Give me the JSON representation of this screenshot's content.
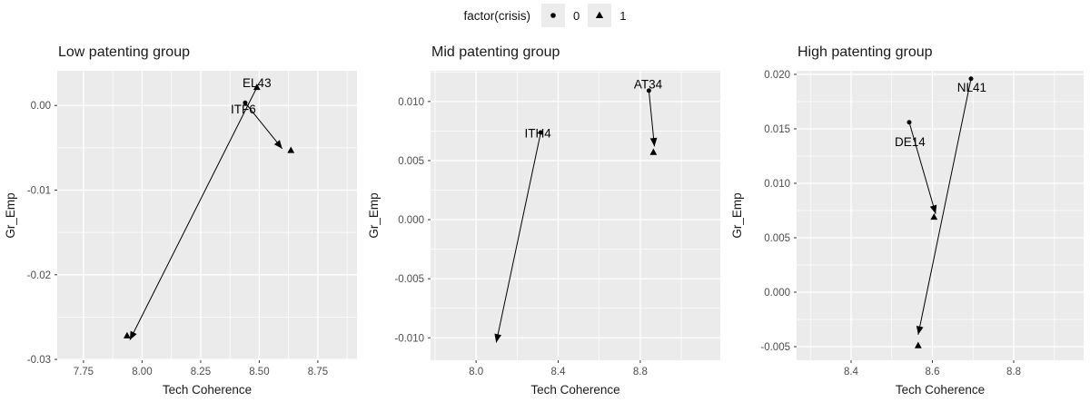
{
  "legend": {
    "title": "factor(crisis)",
    "items": [
      {
        "symbol": "circle",
        "label": "0"
      },
      {
        "symbol": "triangle",
        "label": "1"
      }
    ]
  },
  "colors": {
    "panel_bg": "#EBEBEB",
    "grid": "#FFFFFF",
    "tick_text": "#4D4D4D",
    "tick_mark": "#333333",
    "title_text": "#1A1A1A",
    "marker": "#000000",
    "legend_key_bg": "#ECECEC"
  },
  "chart_data": [
    {
      "type": "scatter",
      "title": "Low patenting group",
      "xlabel": "Tech Coherence",
      "ylabel": "Gr_Emp",
      "xlim": [
        7.638,
        8.917
      ],
      "ylim": [
        -0.0301,
        0.0041
      ],
      "xticks": [
        7.75,
        8.0,
        8.25,
        8.5,
        8.75
      ],
      "xtick_labels": [
        "7.75",
        "8.00",
        "8.25",
        "8.50",
        "8.75"
      ],
      "yticks": [
        0.0,
        -0.01,
        -0.02,
        -0.03
      ],
      "ytick_labels": [
        "0.00",
        "-0.01",
        "-0.02",
        "-0.03"
      ],
      "xminor": [
        7.875,
        8.125,
        8.375,
        8.625,
        8.875
      ],
      "yminor": [
        -0.005,
        -0.015,
        -0.025
      ],
      "grid": true,
      "legend_position": "top-shared",
      "points": [
        {
          "x": 8.49,
          "y": 0.00214,
          "shape": "triangle",
          "crisis": 1
        },
        {
          "x": 8.44,
          "y": 0.00032,
          "shape": "circle",
          "crisis": 0
        },
        {
          "x": 7.936,
          "y": -0.0272,
          "shape": "triangle",
          "crisis": 1
        },
        {
          "x": 8.635,
          "y": -0.0053,
          "shape": "triangle",
          "crisis": 1
        }
      ],
      "labels": [
        {
          "x": 8.49,
          "y": 0.00267,
          "text": "EL43"
        },
        {
          "x": 8.432,
          "y": -0.00043,
          "text": "ITF6"
        }
      ],
      "arrows": [
        {
          "x1": 8.49,
          "y1": 0.00214,
          "x2": 7.948,
          "y2": -0.0277
        },
        {
          "x1": 8.44,
          "y1": 0.00032,
          "x2": 8.598,
          "y2": -0.0051
        }
      ]
    },
    {
      "type": "scatter",
      "title": "Mid patenting group",
      "xlabel": "Tech Coherence",
      "ylabel": "Gr_Emp",
      "xlim": [
        7.778,
        9.19
      ],
      "ylim": [
        -0.0119,
        0.0126
      ],
      "xticks": [
        8.0,
        8.4,
        8.8
      ],
      "xtick_labels": [
        "8.0",
        "8.4",
        "8.8"
      ],
      "yticks": [
        0.01,
        0.005,
        0.0,
        -0.005,
        -0.01
      ],
      "ytick_labels": [
        "0.010",
        "0.005",
        "0.000",
        "-0.005",
        "-0.010"
      ],
      "xminor": [
        7.8,
        8.2,
        8.6,
        9.0
      ],
      "yminor": [
        0.0125,
        0.0075,
        0.0025,
        -0.0025,
        -0.0075
      ],
      "grid": true,
      "legend_position": "top-shared",
      "points": [
        {
          "x": 8.315,
          "y": 0.00738,
          "shape": "circle",
          "crisis": 0
        },
        {
          "x": 8.842,
          "y": 0.01092,
          "shape": "circle",
          "crisis": 0
        },
        {
          "x": 8.864,
          "y": 0.0057,
          "shape": "triangle",
          "crisis": 1
        }
      ],
      "labels": [
        {
          "x": 8.301,
          "y": 0.0073,
          "text": "ITH4"
        },
        {
          "x": 8.838,
          "y": 0.01146,
          "text": "AT34"
        }
      ],
      "arrows": [
        {
          "x1": 8.842,
          "y1": 0.01092,
          "x2": 8.869,
          "y2": 0.0062
        },
        {
          "x1": 8.315,
          "y1": 0.00738,
          "x2": 8.098,
          "y2": -0.0104
        }
      ]
    },
    {
      "type": "scatter",
      "title": "High patenting group",
      "xlabel": "Tech Coherence",
      "ylabel": "Gr_Emp",
      "xlim": [
        8.266,
        8.972
      ],
      "ylim": [
        -0.00625,
        0.02033
      ],
      "xticks": [
        8.4,
        8.6,
        8.8
      ],
      "xtick_labels": [
        "8.4",
        "8.6",
        "8.8"
      ],
      "yticks": [
        0.02,
        0.015,
        0.01,
        0.005,
        0.0,
        -0.005
      ],
      "ytick_labels": [
        "0.020",
        "0.015",
        "0.010",
        "0.005",
        "0.000",
        "-0.005"
      ],
      "xminor": [
        8.3,
        8.5,
        8.7,
        8.9
      ],
      "yminor": [
        0.0175,
        0.0125,
        0.0075,
        0.0025,
        -0.0025
      ],
      "grid": true,
      "legend_position": "top-shared",
      "points": [
        {
          "x": 8.695,
          "y": 0.0196,
          "shape": "circle",
          "crisis": 0
        },
        {
          "x": 8.543,
          "y": 0.0156,
          "shape": "circle",
          "crisis": 0
        },
        {
          "x": 8.604,
          "y": 0.0069,
          "shape": "triangle",
          "crisis": 1
        },
        {
          "x": 8.565,
          "y": -0.0049,
          "shape": "triangle",
          "crisis": 1
        }
      ],
      "labels": [
        {
          "x": 8.697,
          "y": 0.0188,
          "text": "NL41"
        },
        {
          "x": 8.545,
          "y": 0.0138,
          "text": "DE14"
        }
      ],
      "arrows": [
        {
          "x1": 8.543,
          "y1": 0.0156,
          "x2": 8.608,
          "y2": 0.0072
        },
        {
          "x1": 8.695,
          "y1": 0.0196,
          "x2": 8.565,
          "y2": -0.0039
        }
      ]
    }
  ]
}
